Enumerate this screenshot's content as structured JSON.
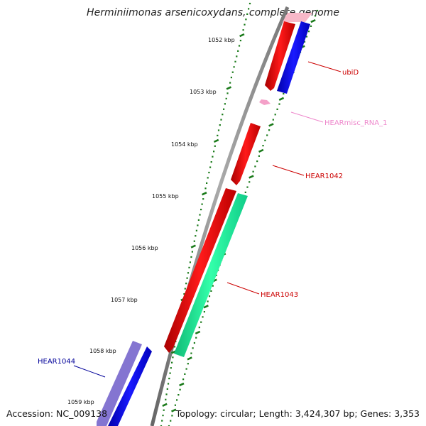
{
  "title": "Herminiimonas arsenicoxydans, complete genome",
  "footer": {
    "accession": "Accession: NC_009138",
    "summary": "Topology: circular; Length: 3,424,307 bp; Genes: 3,353"
  },
  "ticks": [
    {
      "label": "1052 kbp"
    },
    {
      "label": "1053 kbp"
    },
    {
      "label": "1054 kbp"
    },
    {
      "label": "1055 kbp"
    },
    {
      "label": "1056 kbp"
    },
    {
      "label": "1057 kbp"
    },
    {
      "label": "1058 kbp"
    },
    {
      "label": "1059 kbp"
    }
  ],
  "features": [
    {
      "name": "ubiD",
      "color": "#cc0000"
    },
    {
      "name": "HEARmisc_RNA_1",
      "color": "#ee88cc"
    },
    {
      "name": "HEAR1042",
      "color": "#cc0000"
    },
    {
      "name": "HEAR1043",
      "color": "#cc0000"
    },
    {
      "name": "HEAR1044",
      "color": "#000099"
    }
  ],
  "colors": {
    "backbone": "#808080",
    "ticks": "#1a7a1a",
    "forward_cds": "#ee0000",
    "reverse_cds": "#0000ee",
    "rna": "#f4a0c8",
    "other_strand_cds": "#22ee99",
    "reverse_cds_faded": "#7766cc"
  }
}
